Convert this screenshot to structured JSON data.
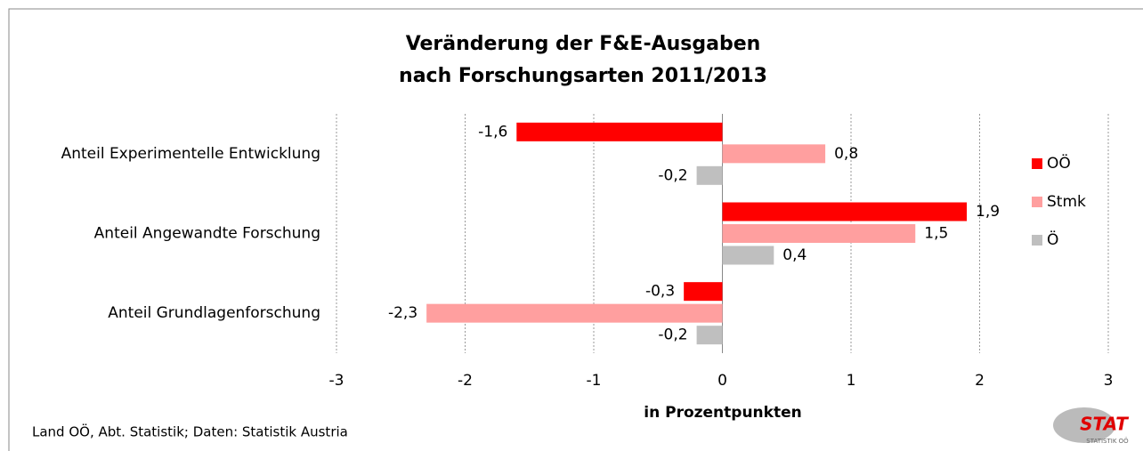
{
  "chart_data": {
    "type": "hbar",
    "title": [
      "Veränderung der F&E-Ausgaben",
      "nach Forschungsarten 2011/2013"
    ],
    "categories": [
      "Anteil Experimentelle Entwicklung",
      "Anteil Angewandte Forschung",
      "Anteil Grundlagenforschung"
    ],
    "series": [
      {
        "name": "OÖ",
        "color": "#ff0000",
        "values": [
          -1.6,
          1.9,
          -0.3
        ],
        "value_labels": [
          "-1,6",
          "1,9",
          "-0,3"
        ]
      },
      {
        "name": "Stmk",
        "color": "#ff9f9f",
        "values": [
          0.8,
          1.5,
          -2.3
        ],
        "value_labels": [
          "0,8",
          "1,5",
          "-2,3"
        ]
      },
      {
        "name": "Ö",
        "color": "#bfbfbf",
        "values": [
          -0.2,
          0.4,
          -0.2
        ],
        "value_labels": [
          "-0,2",
          "0,4",
          "-0,2"
        ]
      }
    ],
    "xlim": [
      -3,
      3
    ],
    "xticks": [
      -3,
      -2,
      -1,
      0,
      1,
      2,
      3
    ],
    "xlabel": "in Prozentpunkten",
    "grid": true,
    "legend": "right",
    "source": "Land OÖ, Abt. Statistik; Daten: Statistik Austria",
    "logo": {
      "name": "STAT",
      "sub": "STATISTIK OÖ"
    }
  }
}
